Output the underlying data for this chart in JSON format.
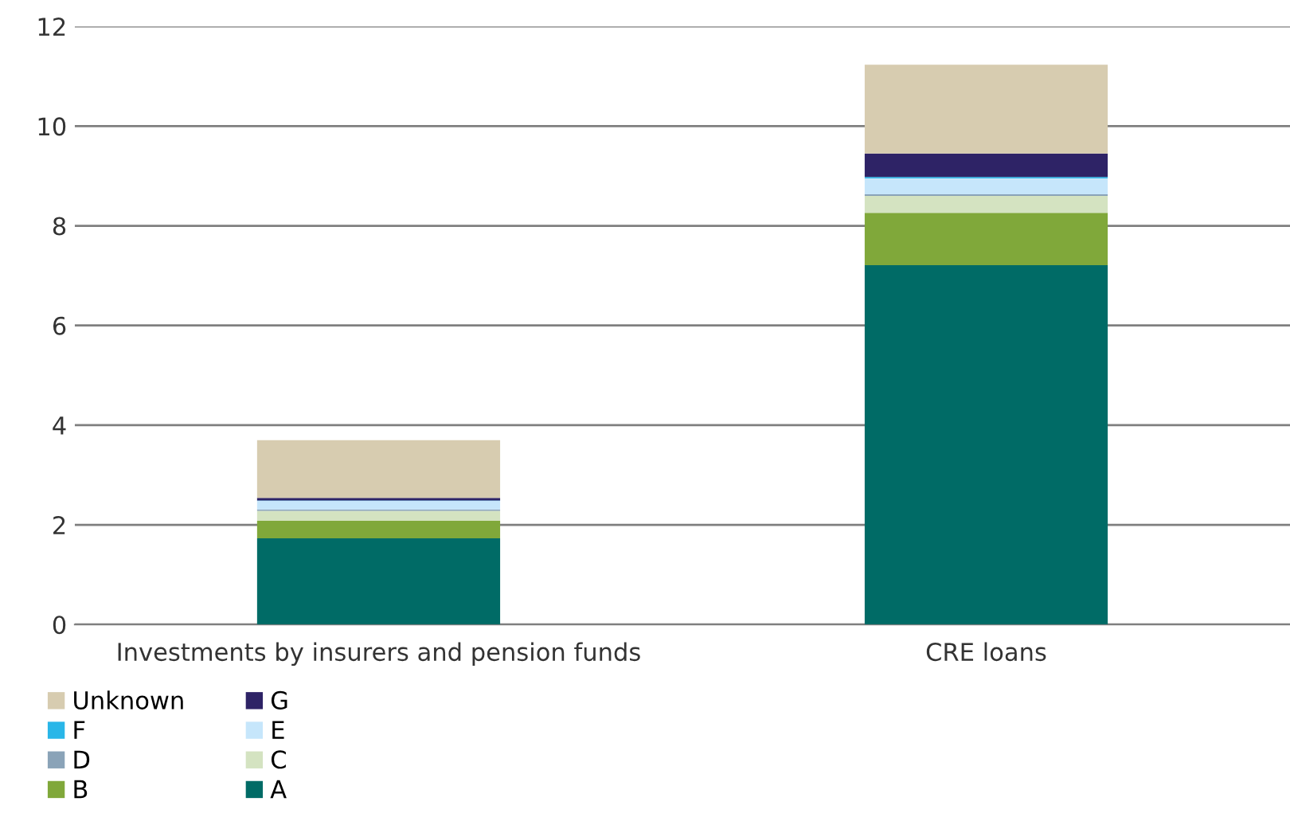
{
  "chart_data": {
    "type": "bar",
    "stacked": true,
    "categories": [
      "Investments by insurers and pension funds",
      "CRE loans"
    ],
    "series": [
      {
        "name": "A",
        "color": "#006b66",
        "values": [
          1.73,
          7.21
        ]
      },
      {
        "name": "B",
        "color": "#80a83a",
        "values": [
          0.35,
          1.05
        ]
      },
      {
        "name": "C",
        "color": "#d4e3c1",
        "values": [
          0.2,
          0.34
        ]
      },
      {
        "name": "D",
        "color": "#8aa3b8",
        "values": [
          0.03,
          0.03
        ]
      },
      {
        "name": "E",
        "color": "#c6e6fb",
        "values": [
          0.17,
          0.32
        ]
      },
      {
        "name": "F",
        "color": "#29b6e8",
        "values": [
          0.01,
          0.03
        ]
      },
      {
        "name": "G",
        "color": "#2e2366",
        "values": [
          0.05,
          0.47
        ]
      },
      {
        "name": "Unknown",
        "color": "#d7ccb0",
        "values": [
          1.16,
          1.78
        ]
      }
    ],
    "ylim": [
      0,
      12
    ],
    "yticks": [
      0,
      2,
      4,
      6,
      8,
      10,
      12
    ],
    "grid": "y",
    "legend": "bottom left"
  }
}
